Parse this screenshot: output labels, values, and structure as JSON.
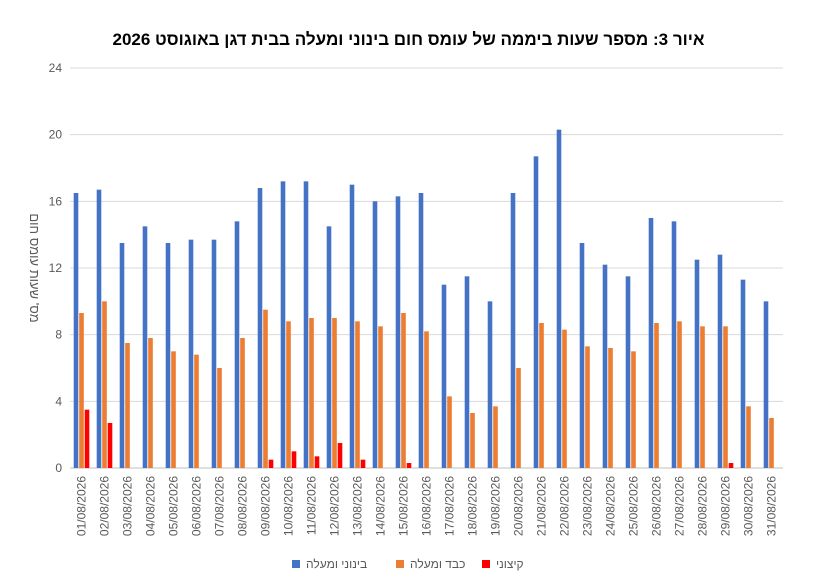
{
  "chart_data": {
    "type": "bar",
    "title": "איור 3: מספר שעות ביממה של עומס חום בינוני ומעלה בבית דגן באוגוסט 2026",
    "xlabel": "",
    "ylabel": "מס' שעות עומס חום",
    "ylim": [
      0,
      24
    ],
    "yticks": [
      0,
      4,
      8,
      12,
      16,
      20,
      24
    ],
    "grid": true,
    "legend": "bottom",
    "categories": [
      "01/08/2026",
      "02/08/2026",
      "03/08/2026",
      "04/08/2026",
      "05/08/2026",
      "06/08/2026",
      "07/08/2026",
      "08/08/2026",
      "09/08/2026",
      "10/08/2026",
      "11/08/2026",
      "12/08/2026",
      "13/08/2026",
      "14/08/2026",
      "15/08/2026",
      "16/08/2026",
      "17/08/2026",
      "18/08/2026",
      "19/08/2026",
      "20/08/2026",
      "21/08/2026",
      "22/08/2026",
      "23/08/2026",
      "24/08/2026",
      "25/08/2026",
      "26/08/2026",
      "27/08/2026",
      "28/08/2026",
      "29/08/2026",
      "30/08/2026",
      "31/08/2026"
    ],
    "series": [
      {
        "name": "בינוני ומעלה",
        "color": "#4472C4",
        "values": [
          16.5,
          16.7,
          13.5,
          14.5,
          13.5,
          13.7,
          13.7,
          14.8,
          16.8,
          17.2,
          17.2,
          14.5,
          17.0,
          16.0,
          16.3,
          16.5,
          11.0,
          11.5,
          10.0,
          16.5,
          18.7,
          20.3,
          13.5,
          12.2,
          11.5,
          15.0,
          14.8,
          12.5,
          12.8,
          11.3,
          10.0
        ]
      },
      {
        "name": "כבד ומעלה",
        "color": "#ED7D31",
        "values": [
          9.3,
          10.0,
          7.5,
          7.8,
          7.0,
          6.8,
          6.0,
          7.8,
          9.5,
          8.8,
          9.0,
          9.0,
          8.8,
          8.5,
          9.3,
          8.2,
          4.3,
          3.3,
          3.7,
          6.0,
          8.7,
          8.3,
          7.3,
          7.2,
          7.0,
          8.7,
          8.8,
          8.5,
          8.5,
          3.7,
          3.0
        ]
      },
      {
        "name": "קיצוני",
        "color": "#FF0000",
        "values": [
          3.5,
          2.7,
          0,
          0,
          0,
          0,
          0,
          0,
          0.5,
          1.0,
          0.7,
          1.5,
          0.5,
          0,
          0.3,
          0,
          0,
          0,
          0,
          0,
          0,
          0,
          0,
          0,
          0,
          0,
          0,
          0,
          0.3,
          0,
          0
        ]
      }
    ]
  }
}
